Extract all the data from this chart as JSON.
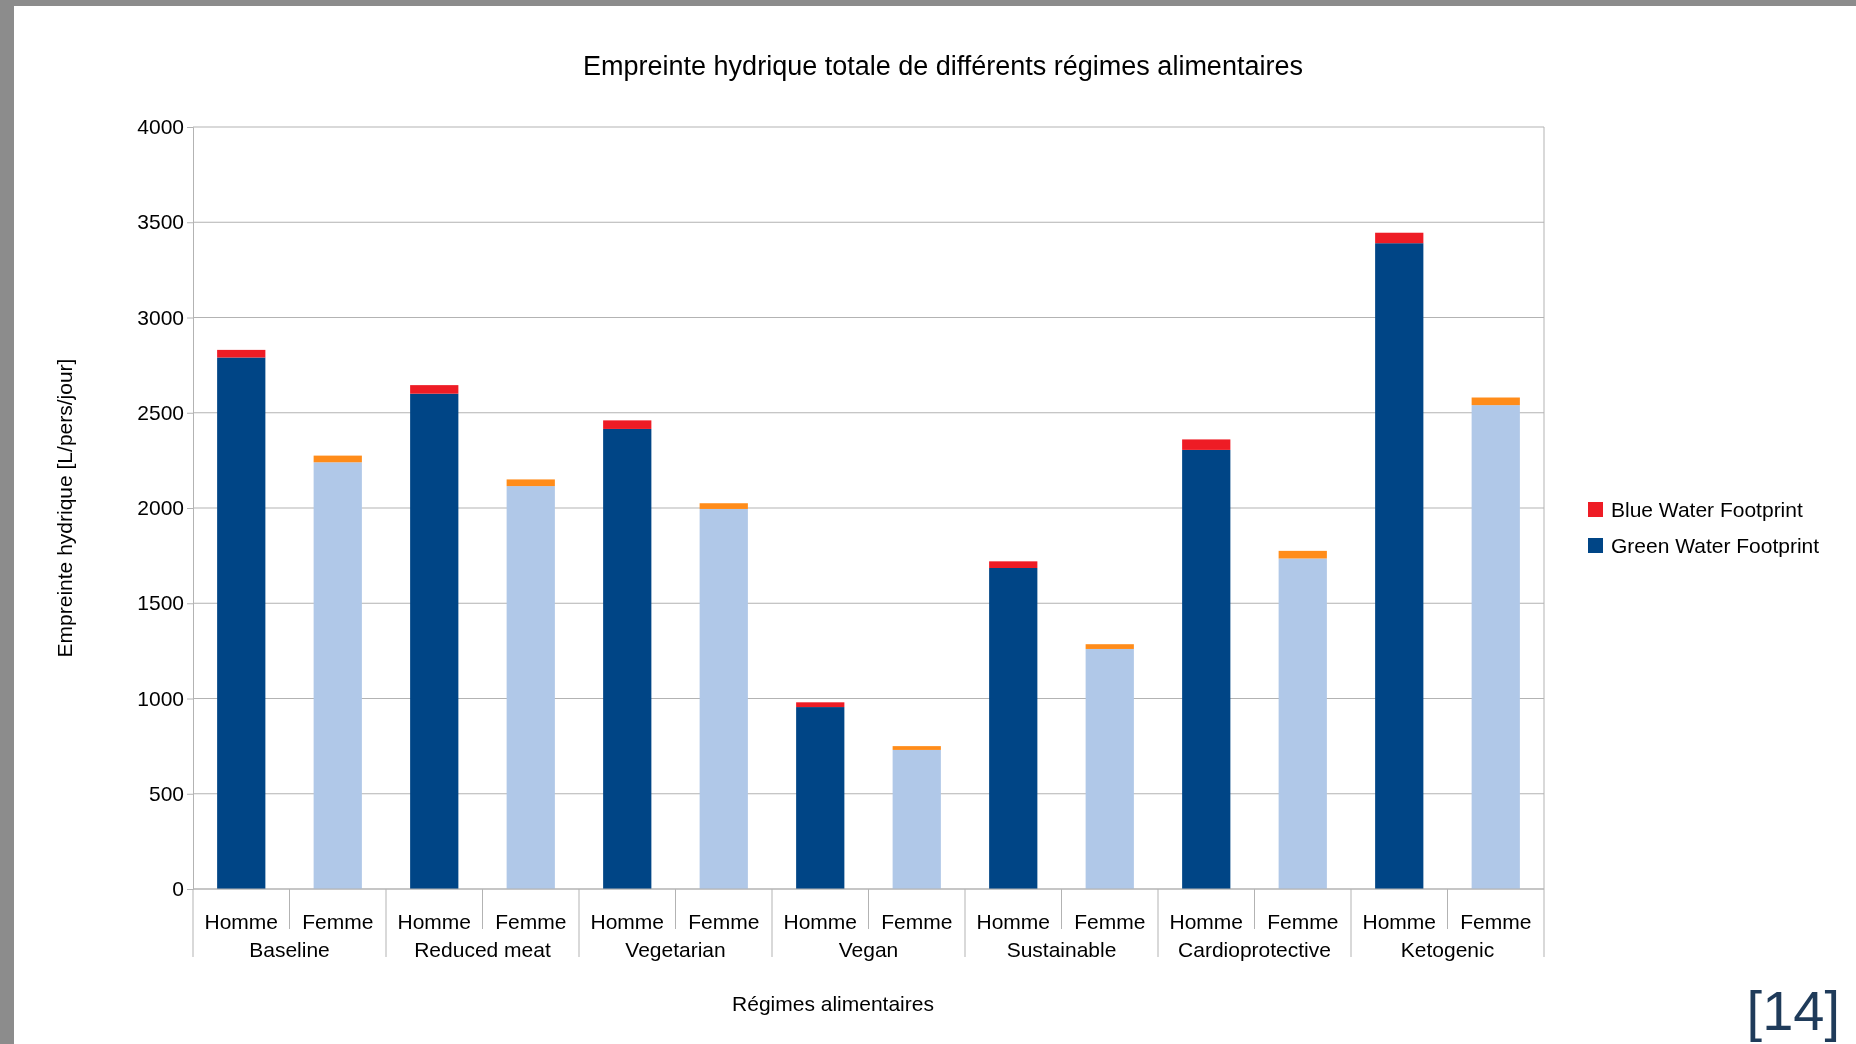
{
  "chart_data": {
    "type": "bar",
    "title": "Empreinte hydrique totale de différents régimes alimentaires",
    "xlabel": "Régimes alimentaires",
    "ylabel": "Empreinte hydrique [L/pers/jour]",
    "categories": [
      "Homme",
      "Femme",
      "Homme",
      "Femme",
      "Homme",
      "Femme",
      "Homme",
      "Femme",
      "Homme",
      "Femme",
      "Homme",
      "Femme",
      "Homme",
      "Femme"
    ],
    "stacked": true,
    "series": [
      {
        "name": "Green Water Footprint",
        "color": "#004586",
        "colors": [
          "#004586",
          "#b0c8e8",
          "#004586",
          "#b0c8e8",
          "#004586",
          "#b0c8e8",
          "#004586",
          "#b0c8e8",
          "#004586",
          "#b0c8e8",
          "#004586",
          "#b0c8e8",
          "#004586",
          "#b0c8e8"
        ],
        "values": [
          2790,
          2240,
          2600,
          2115,
          2415,
          1995,
          955,
          730,
          1685,
          1260,
          2305,
          1735,
          3390,
          2540
        ]
      },
      {
        "name": "Blue Water Footprint",
        "color": "#ee1c25",
        "colors": [
          "#ee1c25",
          "#ff8c1a",
          "#ee1c25",
          "#ff8c1a",
          "#ee1c25",
          "#ff8c1a",
          "#ee1c25",
          "#ff8c1a",
          "#ee1c25",
          "#ff8c1a",
          "#ee1c25",
          "#ff8c1a",
          "#ee1c25",
          "#ff8c1a"
        ],
        "values": [
          40,
          35,
          45,
          35,
          45,
          30,
          25,
          20,
          35,
          25,
          55,
          40,
          55,
          40
        ]
      }
    ],
    "ylim": [
      0,
      4000
    ],
    "yticks": [
      0,
      500,
      1000,
      1500,
      2000,
      2500,
      3000,
      3500,
      4000
    ],
    "grid": "y",
    "legend": "right",
    "annotations": [
      "Baseline",
      "Reduced meat",
      "Vegetarian",
      "Vegan",
      "Sustainable",
      "Cardioprotective",
      "Ketogenic",
      "[14]"
    ]
  }
}
